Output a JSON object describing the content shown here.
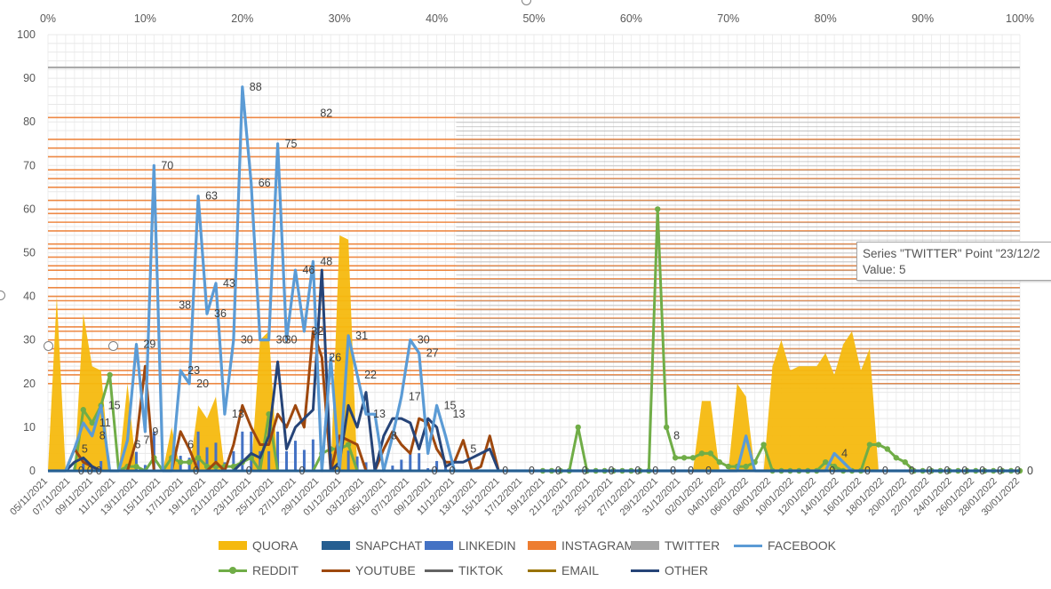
{
  "chart_data": {
    "type": "area",
    "ylim": [
      0,
      100
    ],
    "yticks": [
      "0",
      "10",
      "20",
      "30",
      "40",
      "50",
      "60",
      "70",
      "80",
      "90",
      "100"
    ],
    "top_ticks": [
      "0%",
      "10%",
      "20%",
      "30%",
      "40%",
      "50%",
      "60%",
      "70%",
      "80%",
      "90%",
      "100%"
    ],
    "x_labels": [
      "05/11/2021",
      "07/11/2021",
      "09/11/2021",
      "11/11/2021",
      "13/11/2021",
      "15/11/2021",
      "17/11/2021",
      "19/11/2021",
      "21/11/2021",
      "23/11/2021",
      "25/11/2021",
      "27/11/2021",
      "29/11/2021",
      "01/12/2021",
      "03/12/2021",
      "05/12/2021",
      "07/12/2021",
      "09/12/2021",
      "11/12/2021",
      "13/12/2021",
      "15/12/2021",
      "17/12/2021",
      "19/12/2021",
      "21/12/2021",
      "23/12/2021",
      "25/12/2021",
      "27/12/2021",
      "29/12/2021",
      "31/12/2021",
      "02/01/2022",
      "04/01/2022",
      "06/01/2022",
      "08/01/2022",
      "10/01/2022",
      "12/01/2022",
      "14/01/2022",
      "16/01/2022",
      "18/01/2022",
      "20/01/2022",
      "22/01/2022",
      "24/01/2022",
      "26/01/2022",
      "28/01/2022",
      "30/01/2022"
    ],
    "colors": {
      "QUORA": "#f5b90f",
      "SNAPCHAT": "#255e91",
      "LINKEDIN": "#4472c4",
      "INSTAGRAM": "#ed7d31",
      "TWITTER": "#a5a5a5",
      "FACEBOOK": "#5b9bd5",
      "REDDIT": "#70ad47",
      "YOUTUBE": "#9e480e",
      "TIKTOK": "#636363",
      "EMAIL": "#997300",
      "OTHER": "#264478"
    },
    "series": [
      {
        "name": "QUORA",
        "values": [
          0,
          40,
          0,
          0,
          36,
          24,
          23,
          0,
          0,
          20,
          0,
          0,
          0,
          0,
          10,
          0,
          0,
          15,
          12,
          17,
          0,
          0,
          0,
          0,
          30,
          32,
          0,
          0,
          0,
          0,
          0,
          0,
          0,
          54,
          53,
          0,
          0,
          0,
          0,
          0,
          0,
          0,
          0,
          0,
          0,
          0,
          0,
          0,
          0,
          0,
          0,
          0,
          0,
          0,
          0,
          0,
          0,
          0,
          0,
          0,
          0,
          0,
          0,
          0,
          0,
          0,
          0,
          0,
          0,
          0,
          0,
          0,
          0,
          0,
          16,
          16,
          0,
          0,
          20,
          17,
          0,
          0,
          24,
          30,
          23,
          24,
          24,
          24,
          27,
          22,
          29,
          32,
          23,
          28,
          0,
          0,
          0,
          0,
          0,
          0,
          0,
          0,
          0,
          0,
          0,
          0,
          0,
          0,
          0,
          0,
          0
        ]
      },
      {
        "name": "FACEBOOK",
        "values": [
          0,
          0,
          0,
          5,
          11,
          8,
          15,
          0,
          0,
          7,
          29,
          9,
          70,
          0,
          0,
          23,
          20,
          63,
          36,
          43,
          13,
          30,
          88,
          66,
          30,
          30,
          75,
          30,
          46,
          32,
          48,
          0,
          26,
          0,
          31,
          22,
          13,
          13,
          0,
          8,
          17,
          30,
          27,
          4,
          15,
          8,
          0,
          0,
          0,
          0,
          0,
          0,
          0,
          0,
          0,
          0,
          0,
          0,
          0,
          0,
          0,
          0,
          0,
          0,
          0,
          0,
          0,
          0,
          0,
          0,
          0,
          0,
          0,
          0,
          0,
          0,
          0,
          0,
          0,
          8,
          0,
          0,
          0,
          0,
          0,
          0,
          0,
          0,
          0,
          4,
          2,
          0,
          0,
          0,
          0,
          0,
          0,
          0,
          0,
          0,
          0,
          0,
          0,
          0,
          0,
          0,
          0,
          0,
          0,
          0,
          0
        ]
      },
      {
        "name": "REDDIT",
        "values": [
          0,
          0,
          0,
          0,
          14,
          11,
          15,
          22,
          0,
          1,
          1,
          0,
          3,
          0,
          3,
          2,
          2,
          3,
          1,
          1,
          1,
          1,
          2,
          3,
          0,
          13,
          0,
          0,
          0,
          0,
          0,
          4,
          5,
          5,
          6,
          0,
          0,
          0,
          0,
          0,
          0,
          0,
          0,
          0,
          0,
          0,
          0,
          0,
          0,
          0,
          0,
          0,
          0,
          0,
          0,
          0,
          0,
          0,
          0,
          0,
          10,
          0,
          0,
          0,
          0,
          0,
          0,
          0,
          0,
          60,
          10,
          3,
          3,
          3,
          4,
          4,
          2,
          1,
          1,
          1,
          2,
          6,
          0,
          0,
          0,
          0,
          0,
          0,
          2,
          1,
          0,
          0,
          0,
          6,
          6,
          5,
          3,
          2,
          0,
          0,
          0,
          0,
          0,
          0,
          0,
          0,
          0,
          0,
          0,
          0,
          0
        ]
      },
      {
        "name": "YOUTUBE",
        "values": [
          0,
          0,
          0,
          5,
          2,
          1,
          0,
          0,
          0,
          0,
          7,
          24,
          0,
          0,
          0,
          9,
          5,
          0,
          0,
          2,
          0,
          6,
          15,
          10,
          6,
          6,
          13,
          10,
          15,
          10,
          32,
          26,
          0,
          8,
          7,
          6,
          0,
          0,
          5,
          9,
          6,
          4,
          12,
          11,
          5,
          2,
          2,
          7,
          0,
          1,
          8,
          0,
          0,
          0,
          0,
          0,
          0,
          0,
          0,
          0,
          0,
          0,
          0,
          0,
          0,
          0,
          0,
          0,
          0,
          0,
          0,
          0,
          0,
          0,
          0,
          0,
          0,
          0,
          0,
          0,
          0,
          0,
          0,
          0,
          0,
          0,
          0,
          0,
          0,
          0,
          0,
          0,
          0,
          0,
          0,
          0,
          0,
          0,
          0,
          0,
          0,
          0,
          0,
          0,
          0,
          0,
          0,
          0,
          0,
          0,
          0
        ]
      },
      {
        "name": "OTHER",
        "values": [
          0,
          0,
          0,
          2,
          3,
          1,
          0,
          0,
          0,
          0,
          0,
          0,
          0,
          0,
          0,
          0,
          0,
          0,
          0,
          0,
          0,
          0,
          2,
          4,
          3,
          8,
          25,
          5,
          10,
          12,
          14,
          46,
          0,
          2,
          15,
          10,
          18,
          0,
          8,
          12,
          12,
          11,
          5,
          12,
          10,
          1,
          2,
          2,
          3,
          4,
          5,
          0,
          0,
          0,
          0,
          0,
          0,
          0,
          0,
          0,
          0,
          0,
          0,
          0,
          0,
          0,
          0,
          0,
          0,
          0,
          0,
          0,
          0,
          0,
          0,
          0,
          0,
          0,
          0,
          0,
          0,
          0,
          0,
          0,
          0,
          0,
          0,
          0,
          0,
          0,
          0,
          0,
          0,
          0,
          0,
          0,
          0,
          0,
          0,
          0,
          0,
          0,
          0,
          0,
          0,
          0,
          0,
          0,
          0,
          0,
          0
        ]
      }
    ],
    "data_labels": [
      {
        "text": "5",
        "series": "YOUTUBE",
        "i": 3,
        "v": 5
      },
      {
        "text": "11",
        "series": "REDDIT",
        "i": 5,
        "v": 11
      },
      {
        "text": "15",
        "series": "REDDIT",
        "i": 6,
        "v": 15
      },
      {
        "text": "8",
        "series": "FACEBOOK",
        "i": 5,
        "v": 8
      },
      {
        "text": "6",
        "series": "FACEBOOK",
        "i": 9,
        "v": 6
      },
      {
        "text": "7",
        "series": "YOUTUBE",
        "i": 10,
        "v": 7
      },
      {
        "text": "29",
        "series": "FACEBOOK",
        "i": 10,
        "v": 29
      },
      {
        "text": "9",
        "series": "FACEBOOK",
        "i": 11,
        "v": 9
      },
      {
        "text": "70",
        "series": "FACEBOOK",
        "i": 12,
        "v": 70
      },
      {
        "text": "38",
        "series": "FACEBOOK",
        "i": 14,
        "v": 38
      },
      {
        "text": "6",
        "series": "YOUTUBE",
        "i": 15,
        "v": 6
      },
      {
        "text": "23",
        "series": "FACEBOOK",
        "i": 15,
        "v": 23
      },
      {
        "text": "63",
        "series": "FACEBOOK",
        "i": 17,
        "v": 63
      },
      {
        "text": "20",
        "series": "FACEBOOK",
        "i": 16,
        "v": 20
      },
      {
        "text": "36",
        "series": "FACEBOOK",
        "i": 18,
        "v": 36
      },
      {
        "text": "43",
        "series": "FACEBOOK",
        "i": 19,
        "v": 43
      },
      {
        "text": "13",
        "series": "QUORA",
        "i": 20,
        "v": 13
      },
      {
        "text": "30",
        "series": "FACEBOOK",
        "i": 21,
        "v": 30
      },
      {
        "text": "88",
        "series": "FACEBOOK",
        "i": 22,
        "v": 88
      },
      {
        "text": "66",
        "series": "FACEBOOK",
        "i": 23,
        "v": 66
      },
      {
        "text": "30",
        "series": "FACEBOOK",
        "i": 25,
        "v": 30
      },
      {
        "text": "30",
        "series": "FACEBOOK",
        "i": 26,
        "v": 30
      },
      {
        "text": "75",
        "series": "FACEBOOK",
        "i": 26,
        "v": 75
      },
      {
        "text": "46",
        "series": "FACEBOOK",
        "i": 28,
        "v": 46
      },
      {
        "text": "32",
        "series": "FACEBOOK",
        "i": 29,
        "v": 32
      },
      {
        "text": "48",
        "series": "FACEBOOK",
        "i": 30,
        "v": 48
      },
      {
        "text": "82",
        "series": "FACEBOOK",
        "i": 30,
        "v": 82
      },
      {
        "text": "26",
        "series": "FACEBOOK",
        "i": 31,
        "v": 26
      },
      {
        "text": "31",
        "series": "FACEBOOK",
        "i": 34,
        "v": 31
      },
      {
        "text": "22",
        "series": "FACEBOOK",
        "i": 35,
        "v": 22
      },
      {
        "text": "13",
        "series": "FACEBOOK",
        "i": 36,
        "v": 13
      },
      {
        "text": "8",
        "series": "FACEBOOK",
        "i": 38,
        "v": 8
      },
      {
        "text": "17",
        "series": "FACEBOOK",
        "i": 40,
        "v": 17
      },
      {
        "text": "30",
        "series": "FACEBOOK",
        "i": 41,
        "v": 30
      },
      {
        "text": "27",
        "series": "FACEBOOK",
        "i": 42,
        "v": 27
      },
      {
        "text": "15",
        "series": "FACEBOOK",
        "i": 44,
        "v": 15
      },
      {
        "text": "13",
        "series": "YOUTUBE",
        "i": 45,
        "v": 13
      },
      {
        "text": "5",
        "series": "YOUTUBE",
        "i": 47,
        "v": 5
      },
      {
        "text": "8",
        "series": "REDDIT",
        "i": 70,
        "v": 8
      },
      {
        "text": "4",
        "series": "FACEBOOK",
        "i": 89,
        "v": 4
      }
    ]
  },
  "legend": {
    "row1": [
      "QUORA",
      "SNAPCHAT",
      "LINKEDIN",
      "INSTAGRAM",
      "TWITTER",
      "FACEBOOK"
    ],
    "row2": [
      "REDDIT",
      "YOUTUBE",
      "TIKTOK",
      "EMAIL",
      "OTHER"
    ]
  },
  "tooltip": {
    "line1": "Series \"TWITTER\" Point \"23/12/2",
    "line2": "Value: 5"
  },
  "right_label": "0"
}
